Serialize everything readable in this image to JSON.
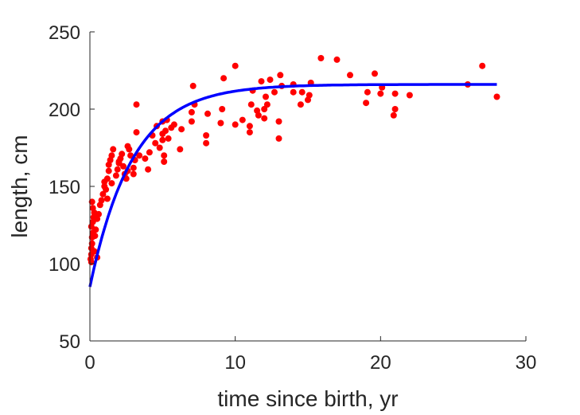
{
  "chart_data": {
    "type": "scatter",
    "title": "",
    "xlabel": "time since birth, yr",
    "ylabel": "length, cm",
    "xlim": [
      0,
      30
    ],
    "ylim": [
      50,
      250
    ],
    "xticks": [
      0,
      10,
      20,
      30
    ],
    "yticks": [
      50,
      100,
      150,
      200,
      250
    ],
    "grid": false,
    "legend": "none",
    "series": [
      {
        "kind": "scatter",
        "color": "#ff0000",
        "points": [
          [
            0.05,
            103
          ],
          [
            0.1,
            101
          ],
          [
            0.1,
            106
          ],
          [
            0.1,
            110
          ],
          [
            0.15,
            113
          ],
          [
            0.15,
            117
          ],
          [
            0.2,
            120
          ],
          [
            0.1,
            124
          ],
          [
            0.2,
            127
          ],
          [
            0.25,
            130
          ],
          [
            0.3,
            133
          ],
          [
            0.2,
            136
          ],
          [
            0.15,
            140
          ],
          [
            0.35,
            118
          ],
          [
            0.4,
            122
          ],
          [
            0.3,
            108
          ],
          [
            0.5,
            129
          ],
          [
            0.6,
            132
          ],
          [
            0.5,
            104
          ],
          [
            0.7,
            138
          ],
          [
            0.8,
            141
          ],
          [
            0.9,
            145
          ],
          [
            1.0,
            150
          ],
          [
            1.0,
            153
          ],
          [
            1.1,
            148
          ],
          [
            1.2,
            155
          ],
          [
            1.3,
            160
          ],
          [
            1.3,
            164
          ],
          [
            1.4,
            167
          ],
          [
            1.5,
            170
          ],
          [
            1.6,
            174
          ],
          [
            1.2,
            142
          ],
          [
            1.5,
            152
          ],
          [
            1.8,
            157
          ],
          [
            1.9,
            161
          ],
          [
            2.0,
            165
          ],
          [
            2.1,
            168
          ],
          [
            2.2,
            171
          ],
          [
            2.3,
            163
          ],
          [
            2.4,
            158
          ],
          [
            2.5,
            155
          ],
          [
            2.6,
            160
          ],
          [
            2.6,
            176
          ],
          [
            2.7,
            174
          ],
          [
            2.8,
            170
          ],
          [
            2.0,
            166
          ],
          [
            3.0,
            162
          ],
          [
            3.0,
            158
          ],
          [
            3.1,
            167
          ],
          [
            3.2,
            185
          ],
          [
            3.2,
            203
          ],
          [
            3.4,
            170
          ],
          [
            3.8,
            168
          ],
          [
            4.0,
            161
          ],
          [
            4.1,
            172
          ],
          [
            4.3,
            183
          ],
          [
            4.5,
            178
          ],
          [
            4.6,
            189
          ],
          [
            4.8,
            175
          ],
          [
            5.0,
            180
          ],
          [
            5.0,
            184
          ],
          [
            5.0,
            192
          ],
          [
            5.1,
            166
          ],
          [
            5.1,
            170
          ],
          [
            5.2,
            186
          ],
          [
            5.3,
            193
          ],
          [
            5.4,
            181
          ],
          [
            5.6,
            188
          ],
          [
            5.8,
            190
          ],
          [
            6.2,
            174
          ],
          [
            6.3,
            187
          ],
          [
            7.0,
            192
          ],
          [
            7.0,
            198
          ],
          [
            7.1,
            215
          ],
          [
            7.2,
            203
          ],
          [
            8.0,
            178
          ],
          [
            8.0,
            183
          ],
          [
            8.1,
            197
          ],
          [
            9.0,
            191
          ],
          [
            9.1,
            200
          ],
          [
            9.2,
            220
          ],
          [
            10.0,
            190
          ],
          [
            10.0,
            228
          ],
          [
            10.5,
            193
          ],
          [
            11.0,
            185
          ],
          [
            11.0,
            189
          ],
          [
            11.1,
            203
          ],
          [
            11.2,
            212
          ],
          [
            11.5,
            199
          ],
          [
            11.6,
            196
          ],
          [
            11.8,
            218
          ],
          [
            12.0,
            194
          ],
          [
            12.0,
            200
          ],
          [
            12.1,
            208
          ],
          [
            12.2,
            203
          ],
          [
            12.4,
            219
          ],
          [
            12.7,
            211
          ],
          [
            13.0,
            181
          ],
          [
            13.0,
            192
          ],
          [
            13.1,
            222
          ],
          [
            13.2,
            215
          ],
          [
            14.0,
            211
          ],
          [
            14.0,
            216
          ],
          [
            14.5,
            203
          ],
          [
            14.6,
            211
          ],
          [
            15.0,
            206
          ],
          [
            15.1,
            209
          ],
          [
            15.2,
            217
          ],
          [
            15.9,
            233
          ],
          [
            17.0,
            232
          ],
          [
            17.9,
            222
          ],
          [
            19.0,
            204
          ],
          [
            19.1,
            211
          ],
          [
            19.6,
            223
          ],
          [
            20.0,
            210
          ],
          [
            20.1,
            214
          ],
          [
            20.9,
            196
          ],
          [
            21.0,
            200
          ],
          [
            21.0,
            210
          ],
          [
            22.0,
            209
          ],
          [
            26.0,
            216
          ],
          [
            27.0,
            228
          ],
          [
            28.0,
            208
          ]
        ]
      },
      {
        "kind": "line",
        "color": "#0000ff",
        "model": {
          "type": "von-bertalanffy",
          "Linf": 216,
          "L0": 85,
          "k": 0.34
        },
        "x_range": [
          0,
          28
        ]
      }
    ]
  }
}
